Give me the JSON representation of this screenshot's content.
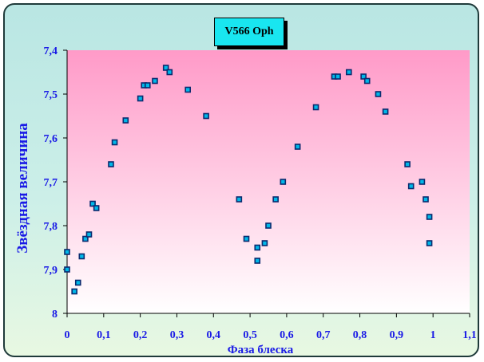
{
  "chart_data": {
    "type": "scatter",
    "title": "V566 Oph",
    "xlabel": "Фаза блеска",
    "ylabel": "Звёздная величина",
    "xlim": [
      0,
      1.1
    ],
    "ylim": [
      7.4,
      8.0
    ],
    "y_inverted": true,
    "grid": false,
    "legend": "none",
    "x_tick_labels": [
      "0",
      "0,1",
      "0,2",
      "0,3",
      "0,4",
      "0,5",
      "0,6",
      "0,7",
      "0,8",
      "0,9",
      "1",
      "1,1"
    ],
    "y_tick_labels": [
      "7,4",
      "7,5",
      "7,6",
      "7,7",
      "7,8",
      "7,9",
      "8"
    ],
    "x_ticks": [
      0,
      0.1,
      0.2,
      0.3,
      0.4,
      0.5,
      0.6,
      0.7,
      0.8,
      0.9,
      1.0,
      1.1
    ],
    "y_ticks": [
      7.4,
      7.5,
      7.6,
      7.7,
      7.8,
      7.9,
      8.0
    ],
    "colors": {
      "plot_top": "#ff9ac8",
      "plot_bottom": "#ffffff",
      "marker": "#0a2a6e",
      "marker_fill": "#00b7e8",
      "text": "#1a1ae6"
    },
    "points": [
      {
        "x": 0.0,
        "y": 7.86
      },
      {
        "x": 0.0,
        "y": 7.9
      },
      {
        "x": 0.02,
        "y": 7.95
      },
      {
        "x": 0.03,
        "y": 7.93
      },
      {
        "x": 0.04,
        "y": 7.87
      },
      {
        "x": 0.05,
        "y": 7.83
      },
      {
        "x": 0.06,
        "y": 7.82
      },
      {
        "x": 0.07,
        "y": 7.75
      },
      {
        "x": 0.08,
        "y": 7.76
      },
      {
        "x": 0.12,
        "y": 7.66
      },
      {
        "x": 0.13,
        "y": 7.61
      },
      {
        "x": 0.16,
        "y": 7.56
      },
      {
        "x": 0.2,
        "y": 7.51
      },
      {
        "x": 0.21,
        "y": 7.48
      },
      {
        "x": 0.22,
        "y": 7.48
      },
      {
        "x": 0.24,
        "y": 7.47
      },
      {
        "x": 0.27,
        "y": 7.44
      },
      {
        "x": 0.28,
        "y": 7.45
      },
      {
        "x": 0.33,
        "y": 7.49
      },
      {
        "x": 0.38,
        "y": 7.55
      },
      {
        "x": 0.47,
        "y": 7.74
      },
      {
        "x": 0.49,
        "y": 7.83
      },
      {
        "x": 0.52,
        "y": 7.85
      },
      {
        "x": 0.52,
        "y": 7.88
      },
      {
        "x": 0.54,
        "y": 7.84
      },
      {
        "x": 0.55,
        "y": 7.8
      },
      {
        "x": 0.57,
        "y": 7.74
      },
      {
        "x": 0.59,
        "y": 7.7
      },
      {
        "x": 0.63,
        "y": 7.62
      },
      {
        "x": 0.68,
        "y": 7.53
      },
      {
        "x": 0.73,
        "y": 7.46
      },
      {
        "x": 0.74,
        "y": 7.46
      },
      {
        "x": 0.77,
        "y": 7.45
      },
      {
        "x": 0.81,
        "y": 7.46
      },
      {
        "x": 0.82,
        "y": 7.47
      },
      {
        "x": 0.85,
        "y": 7.5
      },
      {
        "x": 0.87,
        "y": 7.54
      },
      {
        "x": 0.93,
        "y": 7.66
      },
      {
        "x": 0.94,
        "y": 7.71
      },
      {
        "x": 0.97,
        "y": 7.7
      },
      {
        "x": 0.98,
        "y": 7.74
      },
      {
        "x": 0.99,
        "y": 7.78
      },
      {
        "x": 0.99,
        "y": 7.84
      }
    ]
  }
}
